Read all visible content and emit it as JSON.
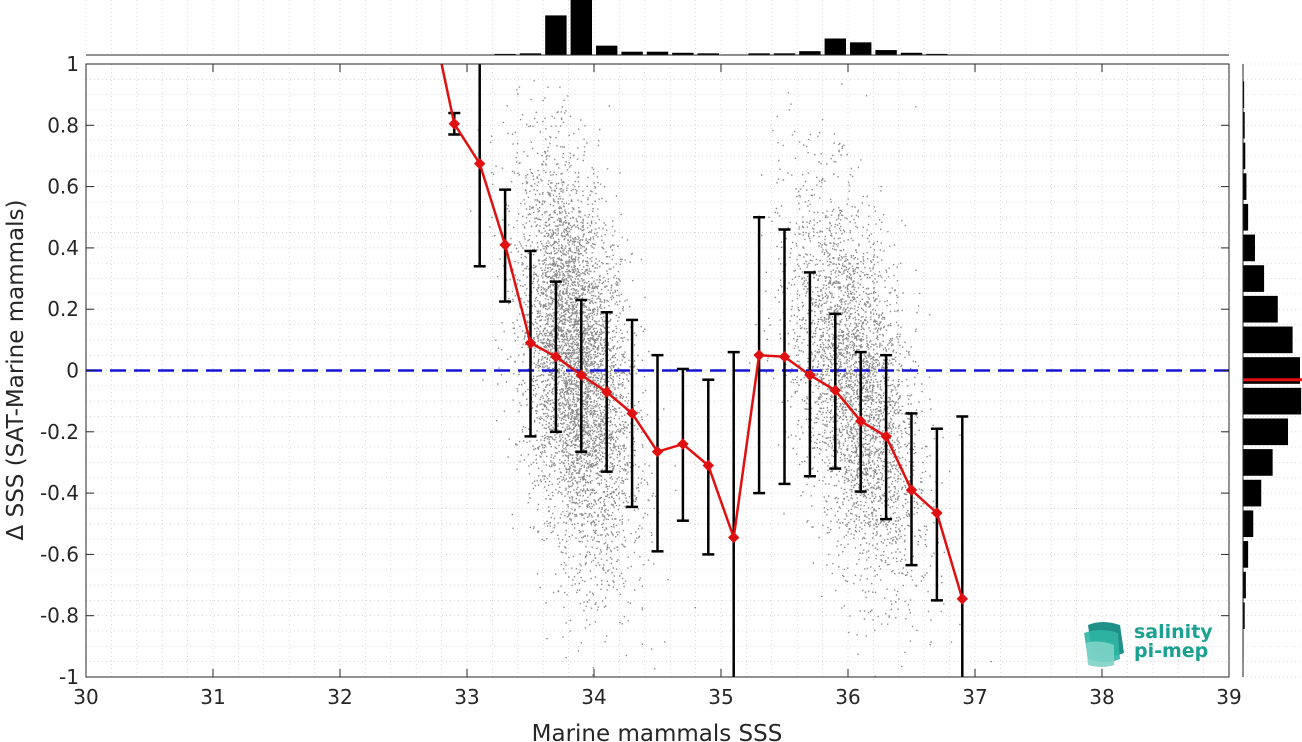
{
  "chart_data": {
    "type": "scatter",
    "xlabel": "Marine mammals SSS",
    "ylabel": "Δ SSS (SAT-Marine mammals)",
    "xlim": [
      30,
      39
    ],
    "ylim": [
      -1,
      1
    ],
    "xticks": [
      "30",
      "31",
      "32",
      "33",
      "34",
      "35",
      "36",
      "37",
      "38",
      "39"
    ],
    "yticks": [
      "-1",
      "-0.8",
      "-0.6",
      "-0.4",
      "-0.2",
      "0",
      "0.2",
      "0.4",
      "0.6",
      "0.8",
      "1"
    ],
    "grid": true,
    "zero_line": {
      "y": 0,
      "style": "dashed",
      "color": "#1515d6"
    },
    "scatter_clusters": [
      {
        "x_center": 33.85,
        "x_spread": 0.22,
        "y_center": 0.02,
        "y_spread": 0.3,
        "tilt": -0.55,
        "count": 5200
      },
      {
        "x_center": 36.05,
        "x_spread": 0.25,
        "y_center": -0.05,
        "y_spread": 0.28,
        "tilt": -0.6,
        "count": 3600
      }
    ],
    "scatter_color": "#8a8a8a",
    "binned_mean": {
      "color": "#e01010",
      "x": [
        32.9,
        33.1,
        33.3,
        33.5,
        33.7,
        33.9,
        34.1,
        34.3,
        34.5,
        34.7,
        34.9,
        35.1,
        35.3,
        35.5,
        35.7,
        35.9,
        36.1,
        36.3,
        36.5,
        36.7,
        36.9
      ],
      "y": [
        0.805,
        0.675,
        0.41,
        0.09,
        0.045,
        -0.015,
        -0.07,
        -0.14,
        -0.265,
        -0.24,
        -0.31,
        -0.545,
        0.05,
        0.045,
        -0.015,
        -0.065,
        -0.165,
        -0.215,
        -0.39,
        -0.465,
        -0.745
      ],
      "err_low": [
        0.77,
        0.34,
        0.225,
        -0.215,
        -0.2,
        -0.265,
        -0.33,
        -0.445,
        -0.59,
        -0.49,
        -0.6,
        -1.1,
        -0.4,
        -0.37,
        -0.345,
        -0.32,
        -0.395,
        -0.485,
        -0.635,
        -0.75,
        -1.1
      ],
      "err_high": [
        0.84,
        1.1,
        0.59,
        0.39,
        0.29,
        0.23,
        0.19,
        0.165,
        0.05,
        0.005,
        -0.03,
        0.06,
        0.5,
        0.46,
        0.32,
        0.185,
        0.06,
        0.05,
        -0.14,
        -0.19,
        -0.15
      ],
      "extra_line_start": {
        "x": 32.8,
        "y": 1.0
      }
    },
    "top_histogram": {
      "bin_centers": [
        32.1,
        32.3,
        32.5,
        32.7,
        32.9,
        33.1,
        33.3,
        33.5,
        33.7,
        33.9,
        34.1,
        34.3,
        34.5,
        34.7,
        34.9,
        35.1,
        35.3,
        35.5,
        35.7,
        35.9,
        36.1,
        36.3,
        36.5,
        36.7,
        36.9,
        37.1
      ],
      "values": [
        0,
        0,
        0,
        0,
        0,
        0,
        0.02,
        0.03,
        0.72,
        1.0,
        0.17,
        0.06,
        0.06,
        0.04,
        0.03,
        0.01,
        0.03,
        0.03,
        0.07,
        0.3,
        0.23,
        0.09,
        0.04,
        0.02,
        0.01,
        0
      ]
    },
    "right_histogram": {
      "bin_centers": [
        0.9,
        0.8,
        0.7,
        0.6,
        0.5,
        0.4,
        0.3,
        0.2,
        0.1,
        0.0,
        -0.1,
        -0.2,
        -0.3,
        -0.4,
        -0.5,
        -0.6,
        -0.7,
        -0.8,
        -0.9
      ],
      "values": [
        0.02,
        0.03,
        0.04,
        0.06,
        0.09,
        0.21,
        0.37,
        0.61,
        0.87,
        1.0,
        1.02,
        0.79,
        0.52,
        0.32,
        0.18,
        0.09,
        0.05,
        0.03,
        0.01
      ],
      "mean_marker_y": -0.03,
      "mean_marker_color": "#e01010"
    }
  },
  "logo": {
    "line1": "salinity",
    "line2": "pi-mep"
  }
}
